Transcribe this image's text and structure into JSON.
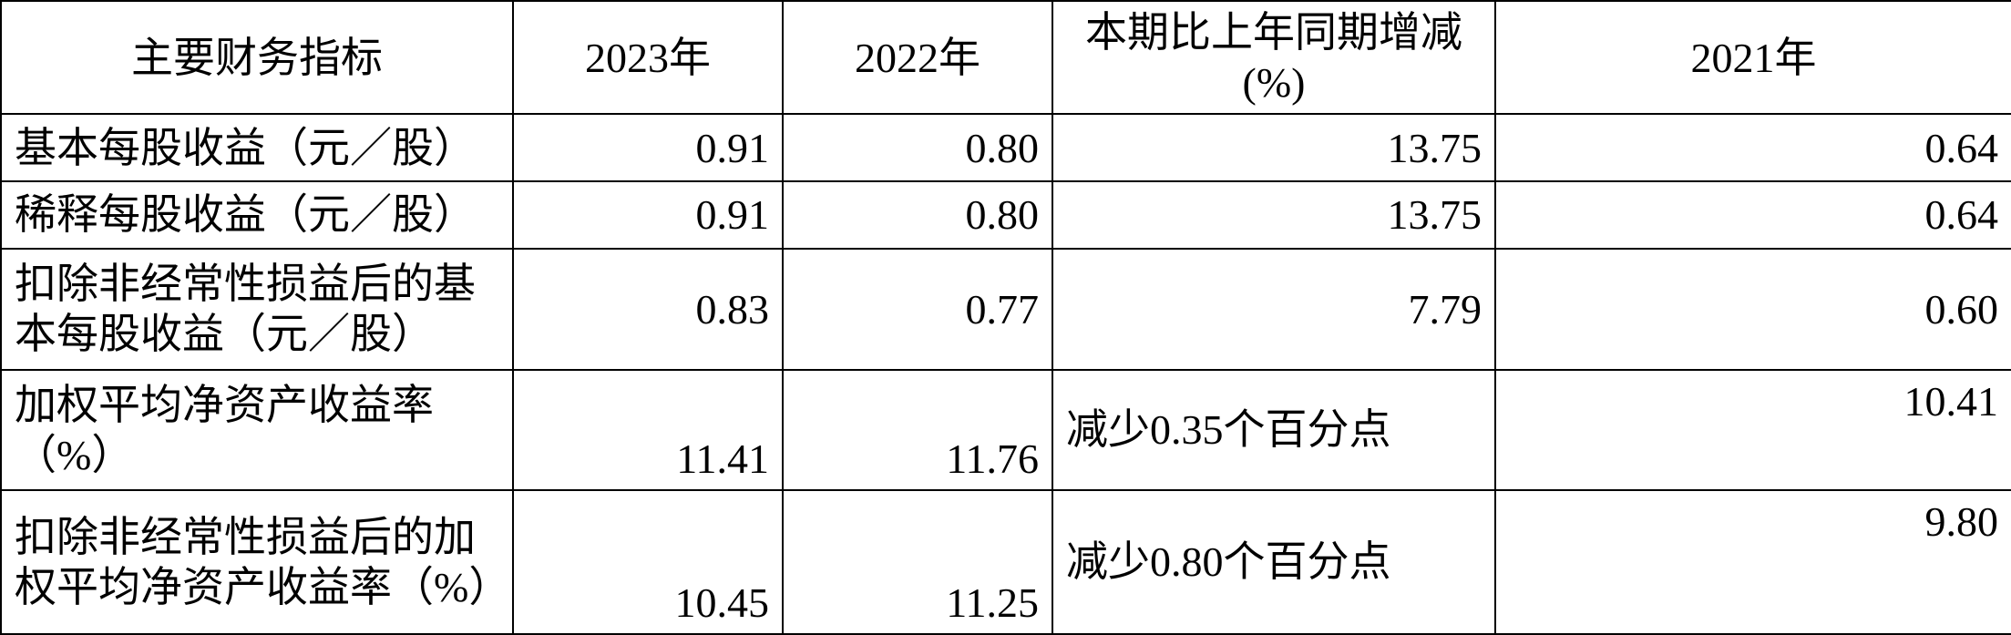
{
  "table": {
    "header": {
      "metric": "主要财务指标",
      "y2023": "2023年",
      "y2022": "2022年",
      "change": "本期比上年同期增减(%)",
      "y2021": "2021年"
    },
    "rows": [
      {
        "metric": "基本每股收益（元／股）",
        "y2023": "0.91",
        "y2022": "0.80",
        "change": "13.75",
        "change_is_text": false,
        "y2021": "0.64",
        "height_class": "r-single"
      },
      {
        "metric": "稀释每股收益（元／股）",
        "y2023": "0.91",
        "y2022": "0.80",
        "change": "13.75",
        "change_is_text": false,
        "y2021": "0.64",
        "height_class": "r-single"
      },
      {
        "metric": "扣除非经常性损益后的基本每股收益（元／股）",
        "y2023": "0.83",
        "y2022": "0.77",
        "change": "7.79",
        "change_is_text": false,
        "y2021": "0.60",
        "height_class": "r-double"
      },
      {
        "metric": "加权平均净资产收益率（%）",
        "y2023": "11.41",
        "y2022": "11.76",
        "change": "减少0.35个百分点",
        "change_is_text": true,
        "y2021": "10.41",
        "height_class": "r-roe"
      },
      {
        "metric": "扣除非经常性损益后的加权平均净资产收益率（%）",
        "y2023": "10.45",
        "y2022": "11.25",
        "change": "减少0.80个百分点",
        "change_is_text": true,
        "y2021": "9.80",
        "height_class": "r-roe2"
      }
    ]
  },
  "style": {
    "font_family": "SimSun",
    "font_size_pt": 34,
    "border_color": "#000000",
    "background_color": "#ffffff",
    "text_color": "#000000"
  }
}
